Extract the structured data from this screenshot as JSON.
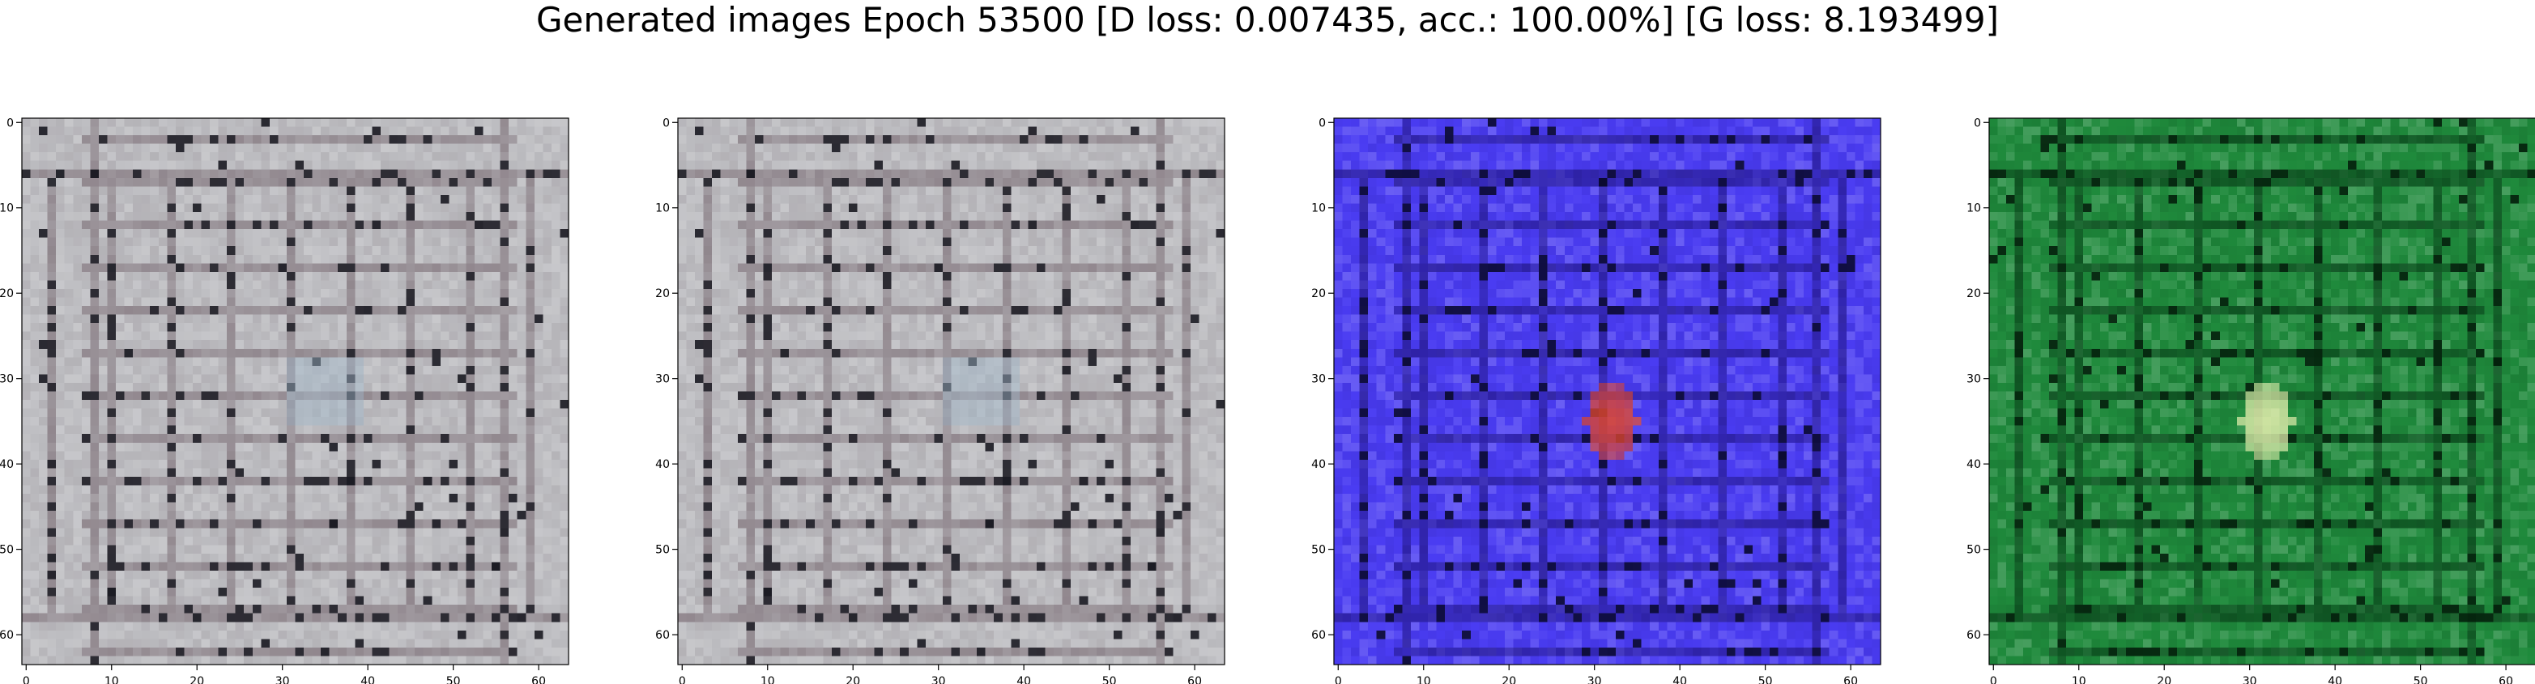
{
  "title": "Generated images Epoch 53500 [D loss: 0.007435, acc.: 100.00%] [G loss: 8.193499]",
  "chart_data": [
    {
      "type": "heatmap",
      "name": "image-1",
      "palette": "pale-gray-pinkish",
      "colors": {
        "base": "#bcbcc0",
        "line": "#8a7f86",
        "dark": "#1a1a22",
        "accent": "#9fb6c8"
      },
      "xticks": [
        "0",
        "10",
        "20",
        "30",
        "40",
        "50",
        "60"
      ],
      "yticks": [
        "0",
        "10",
        "20",
        "30",
        "40",
        "50",
        "60"
      ],
      "xlim": [
        -0.5,
        63.5
      ],
      "ylim": [
        63.5,
        -0.5
      ],
      "grid": false
    },
    {
      "type": "heatmap",
      "name": "image-2",
      "palette": "pale-gray-pinkish",
      "colors": {
        "base": "#bcbcc0",
        "line": "#8a7f86",
        "dark": "#1a1a22",
        "accent": "#9fb6c8"
      },
      "xticks": [
        "0",
        "10",
        "20",
        "30",
        "40",
        "50",
        "60"
      ],
      "yticks": [
        "0",
        "10",
        "20",
        "30",
        "40",
        "50",
        "60"
      ],
      "xlim": [
        -0.5,
        63.5
      ],
      "ylim": [
        63.5,
        -0.5
      ],
      "grid": false
    },
    {
      "type": "heatmap",
      "name": "image-3",
      "palette": "blue-violet",
      "colors": {
        "base": "#4a3cf2",
        "line": "#2a1e9a",
        "dark": "#0a0a30",
        "accent": "#e0462a"
      },
      "xticks": [
        "0",
        "10",
        "20",
        "30",
        "40",
        "50",
        "60"
      ],
      "yticks": [
        "0",
        "10",
        "20",
        "30",
        "40",
        "50",
        "60"
      ],
      "xlim": [
        -0.5,
        63.5
      ],
      "ylim": [
        63.5,
        -0.5
      ],
      "grid": false
    },
    {
      "type": "heatmap",
      "name": "image-4",
      "palette": "green",
      "colors": {
        "base": "#1f8a3c",
        "line": "#0c4a1e",
        "dark": "#04200c",
        "accent": "#e8f0b0"
      },
      "xticks": [
        "0",
        "10",
        "20",
        "30",
        "40",
        "50",
        "60"
      ],
      "yticks": [
        "0",
        "10",
        "20",
        "30",
        "40",
        "50",
        "60"
      ],
      "xlim": [
        -0.5,
        63.5
      ],
      "ylim": [
        63.5,
        -0.5
      ],
      "grid": false
    }
  ]
}
